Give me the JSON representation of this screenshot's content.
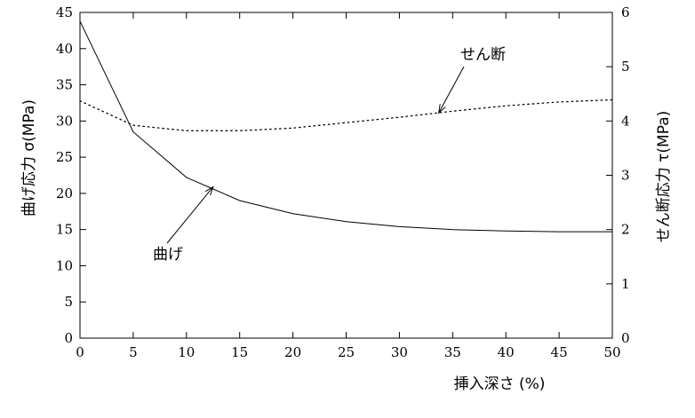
{
  "chart_data": {
    "type": "line",
    "xlabel": "挿入深さ (%)",
    "ylabel_left": "曲げ応力 σ(MPa)",
    "ylabel_right": "せん断応力 τ(MPa)",
    "xlim": [
      0,
      50
    ],
    "ylim_left": [
      0,
      45
    ],
    "ylim_right": [
      0,
      6
    ],
    "x_ticks": [
      "0",
      "5",
      "10",
      "15",
      "20",
      "25",
      "30",
      "35",
      "40",
      "45",
      "50"
    ],
    "y_left_ticks": [
      "0",
      "5",
      "10",
      "15",
      "20",
      "25",
      "30",
      "35",
      "40",
      "45"
    ],
    "y_right_ticks": [
      "0",
      "1",
      "2",
      "3",
      "4",
      "5",
      "6"
    ],
    "grid": false,
    "series": [
      {
        "name": "曲げ",
        "axis": "left",
        "style": "solid",
        "x": [
          0,
          5,
          10,
          15,
          20,
          25,
          30,
          35,
          40,
          45,
          50
        ],
        "y": [
          43.8,
          28.5,
          22.2,
          19.0,
          17.2,
          16.1,
          15.4,
          15.0,
          14.8,
          14.7,
          14.7
        ]
      },
      {
        "name": "せん断",
        "axis": "right",
        "style": "dotted",
        "x": [
          0,
          5,
          10,
          15,
          20,
          25,
          30,
          35,
          40,
          45,
          50
        ],
        "y": [
          4.37,
          3.92,
          3.82,
          3.82,
          3.87,
          3.97,
          4.07,
          4.18,
          4.28,
          4.35,
          4.39
        ]
      }
    ],
    "annotations": [
      {
        "text": "せん断",
        "series": 1,
        "arrow_to": [
          33.7,
          4.15
        ]
      },
      {
        "text": "曲げ",
        "series": 0,
        "arrow_to": [
          12.5,
          20.9
        ]
      }
    ]
  }
}
